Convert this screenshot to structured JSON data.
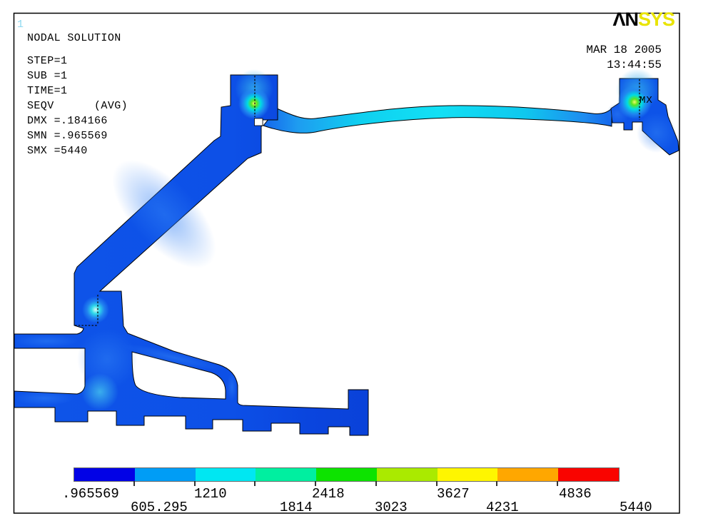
{
  "window": {
    "plot_number": "1"
  },
  "header": {
    "lines": [
      "NODAL SOLUTION",
      "STEP=1",
      "SUB =1",
      "TIME=1",
      "SEQV      (AVG)",
      "DMX =.184166",
      "SMN =.965569",
      "SMX =5440"
    ]
  },
  "logo": {
    "black_part": "ΛN",
    "yellow_part": "SYS",
    "yellow_color": "#e9e400"
  },
  "datetime": {
    "date": "MAR 18 2005",
    "time": "13:44:55"
  },
  "annotations": {
    "max_marker_label": "MX"
  },
  "legend": {
    "values": [
      ".965569",
      "605.295",
      "1210",
      "1814",
      "2418",
      "3023",
      "3627",
      "4231",
      "4836",
      "5440"
    ],
    "colors": [
      "#0202e6",
      "#009df6",
      "#00e7f2",
      "#00efa0",
      "#0de300",
      "#aaea00",
      "#fef600",
      "#ffa700",
      "#f90400"
    ]
  },
  "chart_data": {
    "type": "heatmap",
    "plot_kind": "fea-stress-contour",
    "title": "NODAL SOLUTION",
    "result_item": "SEQV (AVG)",
    "step": 1,
    "substep": 1,
    "time": 1,
    "dmx": 0.184166,
    "smn": 0.965569,
    "smx": 5440,
    "legend_bounds": [
      0.965569,
      605.295,
      1210,
      1814,
      2418,
      3023,
      3627,
      4231,
      4836,
      5440
    ],
    "legend_colors": [
      "#0202e6",
      "#009df6",
      "#00e7f2",
      "#00efa0",
      "#0de300",
      "#aaea00",
      "#fef600",
      "#ffa700",
      "#f90400"
    ],
    "legend_position": "bottom",
    "notes": "Cross-section contour plot, body almost entirely in lowest (blue) band; cyan/green hotspots at slit contacts; MX located at upper-right tab slit."
  }
}
